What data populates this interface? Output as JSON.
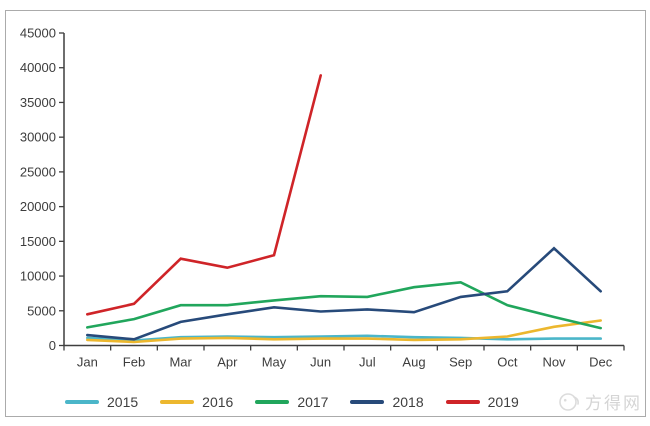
{
  "chart_data": {
    "type": "line",
    "categories": [
      "Jan",
      "Feb",
      "Mar",
      "Apr",
      "May",
      "Jun",
      "Jul",
      "Aug",
      "Sep",
      "Oct",
      "Nov",
      "Dec"
    ],
    "series": [
      {
        "name": "2015",
        "color": "#4bb6c9",
        "values": [
          1100,
          700,
          1200,
          1300,
          1200,
          1300,
          1400,
          1200,
          1100,
          900,
          1000,
          1000
        ]
      },
      {
        "name": "2016",
        "color": "#ecb72e",
        "values": [
          800,
          500,
          1000,
          1100,
          900,
          1000,
          1000,
          800,
          900,
          1300,
          2700,
          3600
        ]
      },
      {
        "name": "2017",
        "color": "#21a65c",
        "values": [
          2600,
          3800,
          5800,
          5800,
          6500,
          7100,
          7000,
          8400,
          9100,
          5800,
          4100,
          2500
        ]
      },
      {
        "name": "2018",
        "color": "#274a7a",
        "values": [
          1500,
          900,
          3400,
          4500,
          5500,
          4900,
          5200,
          4800,
          7000,
          7800,
          14000,
          7800
        ]
      },
      {
        "name": "2019",
        "color": "#cf2428",
        "values": [
          4500,
          6000,
          12500,
          11200,
          13000,
          38900
        ]
      }
    ],
    "title": "",
    "xlabel": "",
    "ylabel": "",
    "ylim": [
      0,
      45000
    ],
    "y_step": 5000,
    "y_tick_labels": [
      "0",
      "5000",
      "10000",
      "15000",
      "20000",
      "25000",
      "30000",
      "35000",
      "40000",
      "45000"
    ],
    "grid": false,
    "legend_position": "bottom",
    "axis_color": "#3f3f3f",
    "tick_label_color": "#3d3d3d"
  },
  "watermark": {
    "text": "方得网",
    "color": "#d5d5d5"
  }
}
